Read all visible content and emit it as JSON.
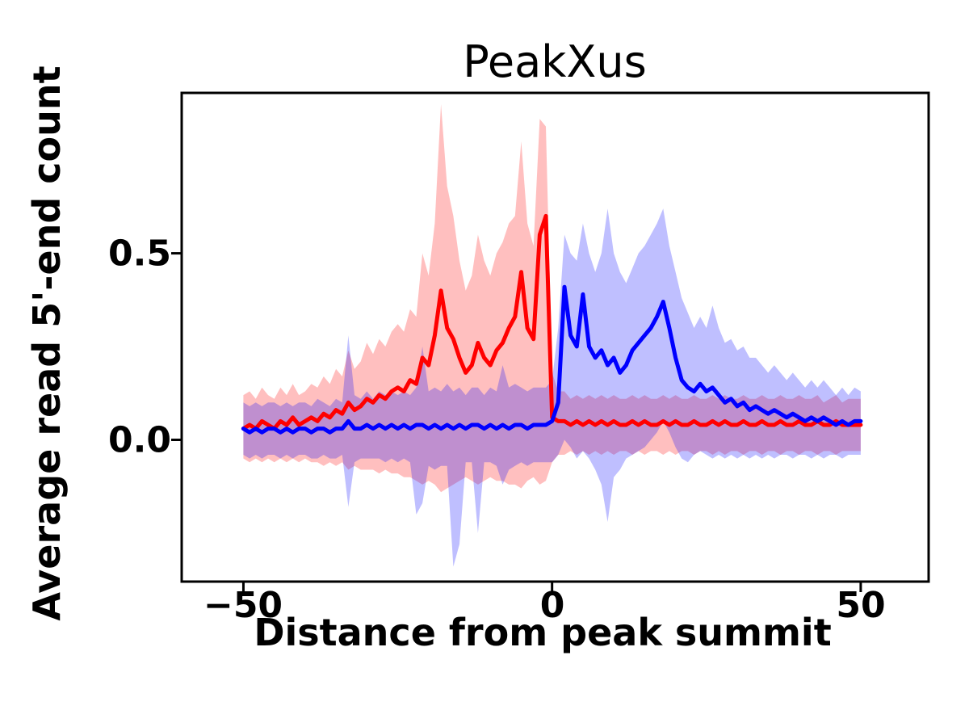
{
  "chart_data": {
    "type": "line",
    "title": "PeakXus",
    "xlabel": "Distance from peak summit",
    "ylabel": "Average read 5'-end count",
    "xlim": [
      -60,
      61
    ],
    "ylim": [
      -0.38,
      0.93
    ],
    "grid": false,
    "legend": null,
    "x_tick_values": [
      -50,
      0,
      50
    ],
    "x_tick_labels": [
      "−50",
      "0",
      "50"
    ],
    "y_tick_values": [
      0.0,
      0.5
    ],
    "y_tick_labels": [
      "0.0",
      "0.5"
    ],
    "frame_color": "#000000",
    "x": [
      -50,
      -49,
      -48,
      -47,
      -46,
      -45,
      -44,
      -43,
      -42,
      -41,
      -40,
      -39,
      -38,
      -37,
      -36,
      -35,
      -34,
      -33,
      -32,
      -31,
      -30,
      -29,
      -28,
      -27,
      -26,
      -25,
      -24,
      -23,
      -22,
      -21,
      -20,
      -19,
      -18,
      -17,
      -16,
      -15,
      -14,
      -13,
      -12,
      -11,
      -10,
      -9,
      -8,
      -7,
      -6,
      -5,
      -4,
      -3,
      -2,
      -1,
      0,
      1,
      2,
      3,
      4,
      5,
      6,
      7,
      8,
      9,
      10,
      11,
      12,
      13,
      14,
      15,
      16,
      17,
      18,
      19,
      20,
      21,
      22,
      23,
      24,
      25,
      26,
      27,
      28,
      29,
      30,
      31,
      32,
      33,
      34,
      35,
      36,
      37,
      38,
      39,
      40,
      41,
      42,
      43,
      44,
      45,
      46,
      47,
      48,
      49,
      50
    ],
    "series": [
      {
        "name": "red",
        "color": "#ff0000",
        "band_color": "rgba(255,0,0,0.25)",
        "values": [
          0.03,
          0.04,
          0.03,
          0.05,
          0.04,
          0.03,
          0.05,
          0.04,
          0.06,
          0.04,
          0.05,
          0.06,
          0.05,
          0.07,
          0.06,
          0.08,
          0.07,
          0.1,
          0.08,
          0.09,
          0.11,
          0.1,
          0.12,
          0.11,
          0.13,
          0.14,
          0.13,
          0.16,
          0.15,
          0.22,
          0.2,
          0.28,
          0.4,
          0.3,
          0.27,
          0.22,
          0.18,
          0.2,
          0.26,
          0.22,
          0.2,
          0.24,
          0.26,
          0.3,
          0.33,
          0.45,
          0.3,
          0.27,
          0.55,
          0.6,
          0.06,
          0.05,
          0.05,
          0.04,
          0.05,
          0.04,
          0.05,
          0.04,
          0.05,
          0.04,
          0.05,
          0.04,
          0.04,
          0.05,
          0.04,
          0.05,
          0.04,
          0.04,
          0.05,
          0.04,
          0.05,
          0.04,
          0.04,
          0.05,
          0.04,
          0.04,
          0.05,
          0.04,
          0.05,
          0.04,
          0.04,
          0.05,
          0.04,
          0.04,
          0.05,
          0.04,
          0.04,
          0.05,
          0.04,
          0.04,
          0.05,
          0.04,
          0.04,
          0.05,
          0.04,
          0.04,
          0.05,
          0.04,
          0.04,
          0.04,
          0.04
        ],
        "band_upper": [
          0.12,
          0.13,
          0.11,
          0.14,
          0.12,
          0.11,
          0.14,
          0.12,
          0.15,
          0.12,
          0.13,
          0.15,
          0.14,
          0.17,
          0.15,
          0.19,
          0.17,
          0.24,
          0.19,
          0.21,
          0.26,
          0.23,
          0.27,
          0.25,
          0.29,
          0.31,
          0.29,
          0.35,
          0.33,
          0.5,
          0.44,
          0.58,
          0.9,
          0.68,
          0.6,
          0.48,
          0.4,
          0.44,
          0.55,
          0.48,
          0.44,
          0.5,
          0.53,
          0.58,
          0.6,
          0.8,
          0.58,
          0.52,
          0.86,
          0.84,
          0.18,
          0.13,
          0.13,
          0.11,
          0.12,
          0.11,
          0.12,
          0.11,
          0.12,
          0.11,
          0.12,
          0.11,
          0.11,
          0.12,
          0.11,
          0.12,
          0.11,
          0.11,
          0.12,
          0.11,
          0.12,
          0.11,
          0.11,
          0.12,
          0.11,
          0.11,
          0.12,
          0.11,
          0.12,
          0.11,
          0.11,
          0.12,
          0.11,
          0.11,
          0.12,
          0.11,
          0.11,
          0.12,
          0.11,
          0.11,
          0.12,
          0.11,
          0.11,
          0.12,
          0.1,
          0.11,
          0.12,
          0.1,
          0.11,
          0.11,
          0.11
        ],
        "band_lower": [
          -0.05,
          -0.06,
          -0.05,
          -0.06,
          -0.05,
          -0.06,
          -0.05,
          -0.06,
          -0.05,
          -0.06,
          -0.05,
          -0.06,
          -0.06,
          -0.07,
          -0.06,
          -0.07,
          -0.06,
          -0.08,
          -0.07,
          -0.08,
          -0.08,
          -0.08,
          -0.09,
          -0.08,
          -0.09,
          -0.09,
          -0.1,
          -0.1,
          -0.11,
          -0.12,
          -0.11,
          -0.12,
          -0.14,
          -0.13,
          -0.12,
          -0.11,
          -0.1,
          -0.11,
          -0.12,
          -0.11,
          -0.1,
          -0.11,
          -0.11,
          -0.12,
          -0.12,
          -0.13,
          -0.11,
          -0.1,
          -0.12,
          -0.11,
          -0.06,
          -0.04,
          -0.04,
          -0.03,
          -0.04,
          -0.03,
          -0.04,
          -0.03,
          -0.04,
          -0.03,
          -0.04,
          -0.03,
          -0.03,
          -0.04,
          -0.03,
          -0.04,
          -0.03,
          -0.03,
          -0.04,
          -0.03,
          -0.04,
          -0.03,
          -0.03,
          -0.04,
          -0.03,
          -0.03,
          -0.04,
          -0.03,
          -0.04,
          -0.03,
          -0.03,
          -0.04,
          -0.03,
          -0.03,
          -0.04,
          -0.03,
          -0.03,
          -0.04,
          -0.03,
          -0.03,
          -0.04,
          -0.03,
          -0.03,
          -0.04,
          -0.03,
          -0.03,
          -0.04,
          -0.03,
          -0.03,
          -0.03,
          -0.03
        ]
      },
      {
        "name": "blue",
        "color": "#0000ff",
        "band_color": "rgba(0,0,255,0.25)",
        "values": [
          0.03,
          0.02,
          0.03,
          0.02,
          0.03,
          0.03,
          0.02,
          0.03,
          0.02,
          0.03,
          0.03,
          0.02,
          0.03,
          0.03,
          0.02,
          0.03,
          0.03,
          0.05,
          0.03,
          0.03,
          0.04,
          0.03,
          0.04,
          0.03,
          0.04,
          0.03,
          0.04,
          0.03,
          0.04,
          0.04,
          0.03,
          0.04,
          0.03,
          0.04,
          0.03,
          0.04,
          0.03,
          0.04,
          0.04,
          0.03,
          0.04,
          0.03,
          0.04,
          0.03,
          0.04,
          0.04,
          0.03,
          0.04,
          0.04,
          0.04,
          0.05,
          0.1,
          0.41,
          0.28,
          0.25,
          0.39,
          0.25,
          0.22,
          0.24,
          0.2,
          0.22,
          0.18,
          0.2,
          0.24,
          0.26,
          0.28,
          0.3,
          0.33,
          0.37,
          0.3,
          0.22,
          0.16,
          0.14,
          0.13,
          0.15,
          0.13,
          0.14,
          0.12,
          0.1,
          0.11,
          0.09,
          0.1,
          0.08,
          0.09,
          0.08,
          0.07,
          0.08,
          0.07,
          0.06,
          0.07,
          0.06,
          0.05,
          0.06,
          0.05,
          0.06,
          0.05,
          0.04,
          0.05,
          0.04,
          0.05,
          0.05
        ],
        "band_upper": [
          0.1,
          0.09,
          0.1,
          0.09,
          0.1,
          0.1,
          0.09,
          0.1,
          0.09,
          0.1,
          0.1,
          0.09,
          0.11,
          0.1,
          0.09,
          0.11,
          0.1,
          0.28,
          0.12,
          0.11,
          0.13,
          0.11,
          0.13,
          0.12,
          0.13,
          0.12,
          0.13,
          0.12,
          0.14,
          0.25,
          0.13,
          0.14,
          0.13,
          0.15,
          0.13,
          0.14,
          0.12,
          0.14,
          0.14,
          0.12,
          0.14,
          0.13,
          0.2,
          0.14,
          0.15,
          0.14,
          0.13,
          0.14,
          0.14,
          0.14,
          0.16,
          0.3,
          0.55,
          0.5,
          0.48,
          0.58,
          0.5,
          0.45,
          0.5,
          0.62,
          0.5,
          0.45,
          0.42,
          0.46,
          0.5,
          0.52,
          0.55,
          0.58,
          0.62,
          0.52,
          0.45,
          0.38,
          0.34,
          0.3,
          0.33,
          0.3,
          0.36,
          0.3,
          0.26,
          0.27,
          0.24,
          0.25,
          0.22,
          0.22,
          0.2,
          0.18,
          0.2,
          0.18,
          0.16,
          0.18,
          0.16,
          0.14,
          0.16,
          0.14,
          0.16,
          0.14,
          0.12,
          0.14,
          0.12,
          0.14,
          0.13
        ],
        "band_lower": [
          -0.04,
          -0.05,
          -0.04,
          -0.05,
          -0.04,
          -0.04,
          -0.05,
          -0.04,
          -0.05,
          -0.04,
          -0.04,
          -0.05,
          -0.05,
          -0.04,
          -0.05,
          -0.05,
          -0.04,
          -0.18,
          -0.06,
          -0.05,
          -0.05,
          -0.05,
          -0.05,
          -0.06,
          -0.05,
          -0.06,
          -0.05,
          -0.06,
          -0.2,
          -0.17,
          -0.07,
          -0.08,
          -0.07,
          -0.07,
          -0.34,
          -0.28,
          -0.06,
          -0.06,
          -0.25,
          -0.06,
          -0.06,
          -0.07,
          -0.12,
          -0.08,
          -0.07,
          -0.06,
          -0.07,
          -0.06,
          -0.06,
          -0.06,
          -0.06,
          -0.04,
          0.0,
          -0.02,
          -0.05,
          -0.03,
          -0.05,
          -0.08,
          -0.12,
          -0.22,
          -0.1,
          -0.08,
          -0.05,
          -0.04,
          -0.03,
          -0.02,
          0.0,
          0.02,
          0.05,
          0.02,
          -0.02,
          -0.05,
          -0.06,
          -0.04,
          -0.03,
          -0.04,
          -0.05,
          -0.04,
          -0.05,
          -0.04,
          -0.05,
          -0.04,
          -0.05,
          -0.04,
          -0.05,
          -0.04,
          -0.05,
          -0.04,
          -0.04,
          -0.05,
          -0.04,
          -0.04,
          -0.05,
          -0.04,
          -0.05,
          -0.04,
          -0.04,
          -0.05,
          -0.04,
          -0.04,
          -0.04
        ]
      }
    ]
  }
}
